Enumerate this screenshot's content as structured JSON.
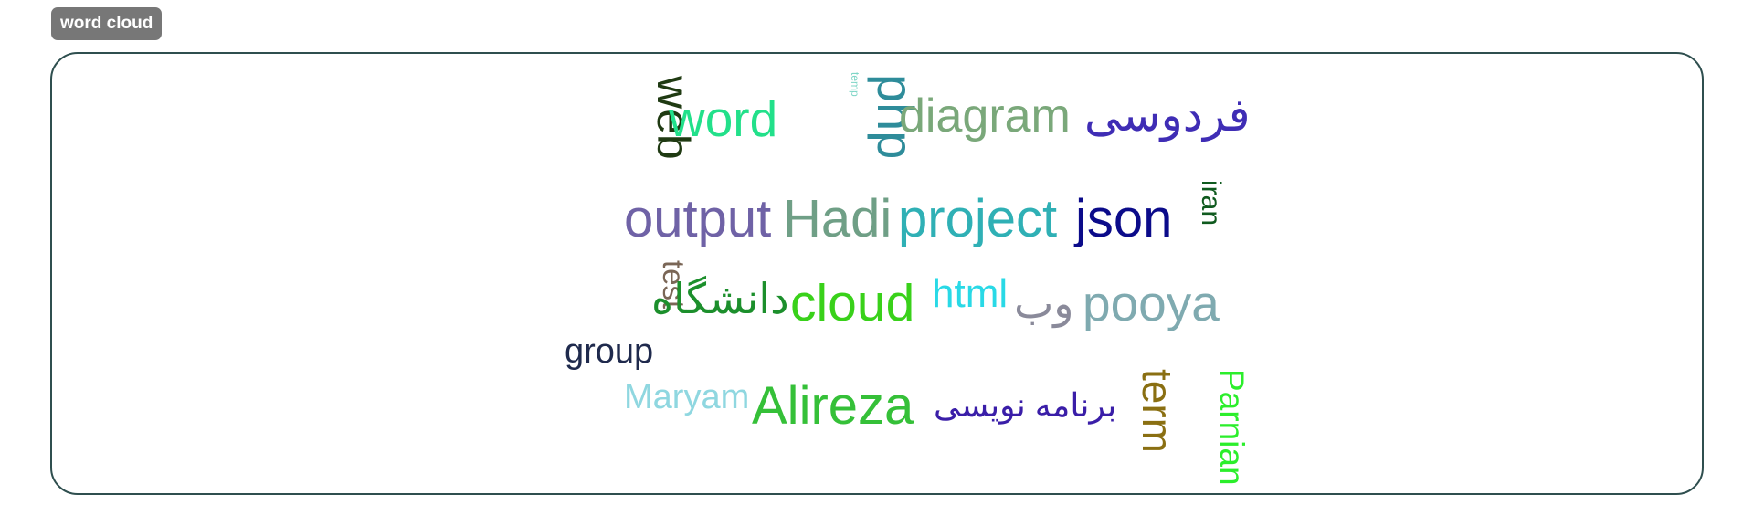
{
  "header": {
    "button_label": "word cloud"
  },
  "cloud": {
    "words": [
      {
        "text": "web",
        "color": "#1f3a12"
      },
      {
        "text": "word",
        "color": "#22e08a"
      },
      {
        "text": "temp",
        "color": "#7fd6c7"
      },
      {
        "text": "php",
        "color": "#2e8c9a"
      },
      {
        "text": "diagram",
        "color": "#7aa87a"
      },
      {
        "text": "فردوسی",
        "color": "#3f2db5"
      },
      {
        "text": "output",
        "color": "#6f62a6"
      },
      {
        "text": "Hadi",
        "color": "#6f9f86"
      },
      {
        "text": "project",
        "color": "#2fb0b5"
      },
      {
        "text": "json",
        "color": "#0b0b8a"
      },
      {
        "text": "iran",
        "color": "#0f5a1e"
      },
      {
        "text": "test",
        "color": "#7a6656"
      },
      {
        "text": "دانشگاه",
        "color": "#1c8f2c"
      },
      {
        "text": "cloud",
        "color": "#39d11a"
      },
      {
        "text": "html",
        "color": "#29d9e6"
      },
      {
        "text": "وب",
        "color": "#8a8a9a"
      },
      {
        "text": "pooya",
        "color": "#7faab0"
      },
      {
        "text": "group",
        "color": "#1f2a4d"
      },
      {
        "text": "Maryam",
        "color": "#8fd7e0"
      },
      {
        "text": "Alireza",
        "color": "#35c038"
      },
      {
        "text": "برنامه نویسی",
        "color": "#3a1ea8"
      },
      {
        "text": "term",
        "color": "#8a6f12"
      },
      {
        "text": "Parnian",
        "color": "#2bee2b"
      }
    ]
  }
}
